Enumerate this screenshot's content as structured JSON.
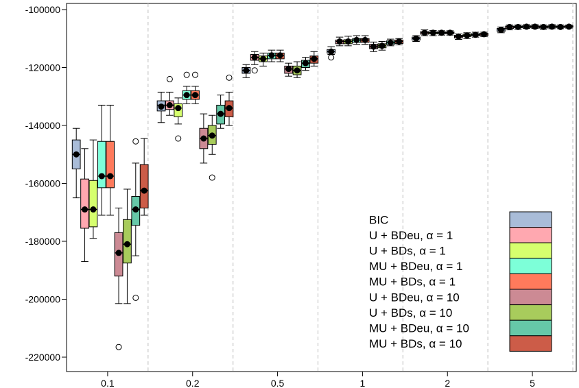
{
  "chart_data": {
    "type": "boxplot",
    "title": "",
    "xlabel": "",
    "ylabel": "",
    "ylim": [
      -225000,
      -97000
    ],
    "y_ticks": [
      "-100000",
      "-120000",
      "-140000",
      "-160000",
      "-180000",
      "-200000",
      "-220000"
    ],
    "y_tick_values": [
      -100000,
      -120000,
      -140000,
      -160000,
      -180000,
      -200000,
      -220000
    ],
    "categories": [
      "0.1",
      "0.2",
      "0.5",
      "1",
      "2",
      "5"
    ],
    "grid": "dashed vertical separators between categories",
    "legend_position": "bottom-right",
    "series": [
      {
        "name": "BIC",
        "color": "#a9bcd8",
        "boxes": [
          {
            "min": -165000,
            "q1": -155000,
            "median": -150000,
            "q3": -145000,
            "max": -141000,
            "mean": -150000,
            "outliers": []
          },
          {
            "min": -139000,
            "q1": -135000,
            "median": -133000,
            "q3": -131500,
            "max": -128500,
            "mean": -133500,
            "outliers": []
          },
          {
            "min": -123500,
            "q1": -122000,
            "median": -121000,
            "q3": -120000,
            "max": -119000,
            "mean": -121000,
            "outliers": []
          },
          {
            "min": -115500,
            "q1": -115000,
            "median": -114500,
            "q3": -113800,
            "max": -112800,
            "mean": -114500,
            "outliers": [
              -116500
            ]
          },
          {
            "min": -111000,
            "q1": -110500,
            "median": -110000,
            "q3": -109500,
            "max": -109000,
            "mean": -110000,
            "outliers": []
          },
          {
            "min": -108000,
            "q1": -107500,
            "median": -107000,
            "q3": -106500,
            "max": -106000,
            "mean": -107000,
            "outliers": []
          }
        ]
      },
      {
        "name": "U + BDeu, α = 1",
        "color": "#ffa8b0",
        "boxes": [
          {
            "min": -187000,
            "q1": -175500,
            "median": -169000,
            "q3": -158500,
            "max": -148000,
            "mean": -169000,
            "outliers": []
          },
          {
            "min": -136500,
            "q1": -134500,
            "median": -133000,
            "q3": -131500,
            "max": -128500,
            "mean": -133000,
            "outliers": [
              -124000
            ]
          },
          {
            "min": -119000,
            "q1": -117500,
            "median": -116500,
            "q3": -115500,
            "max": -114500,
            "mean": -116500,
            "outliers": [
              -121000
            ]
          },
          {
            "min": -112500,
            "q1": -111800,
            "median": -111000,
            "q3": -110500,
            "max": -109500,
            "mean": -111000,
            "outliers": []
          },
          {
            "min": -109000,
            "q1": -108500,
            "median": -108000,
            "q3": -107600,
            "max": -107000,
            "mean": -108000,
            "outliers": []
          },
          {
            "min": -107000,
            "q1": -106500,
            "median": -106000,
            "q3": -105700,
            "max": -105300,
            "mean": -106000,
            "outliers": []
          }
        ]
      },
      {
        "name": "U + BDs, α = 1",
        "color": "#d6ff6e",
        "boxes": [
          {
            "min": -179000,
            "q1": -175000,
            "median": -169000,
            "q3": -159000,
            "max": -145000,
            "mean": -169000,
            "outliers": []
          },
          {
            "min": -139500,
            "q1": -137000,
            "median": -134000,
            "q3": -132500,
            "max": -130500,
            "mean": -134000,
            "outliers": [
              -144500
            ]
          },
          {
            "min": -119500,
            "q1": -118000,
            "median": -117000,
            "q3": -116000,
            "max": -115000,
            "mean": -117000,
            "outliers": []
          },
          {
            "min": -112500,
            "q1": -111800,
            "median": -111000,
            "q3": -110400,
            "max": -109200,
            "mean": -111000,
            "outliers": []
          },
          {
            "min": -109000,
            "q1": -108400,
            "median": -108000,
            "q3": -107700,
            "max": -107200,
            "mean": -108000,
            "outliers": []
          },
          {
            "min": -106800,
            "q1": -106300,
            "median": -106000,
            "q3": -105700,
            "max": -105300,
            "mean": -106000,
            "outliers": []
          }
        ]
      },
      {
        "name": "MU + BDeu, α = 1",
        "color": "#7dffd8",
        "boxes": [
          {
            "min": -171000,
            "q1": -161500,
            "median": -157500,
            "q3": -145500,
            "max": -133000,
            "mean": -157500,
            "outliers": []
          },
          {
            "min": -132500,
            "q1": -131000,
            "median": -129500,
            "q3": -128000,
            "max": -126500,
            "mean": -129500,
            "outliers": [
              -122500
            ]
          },
          {
            "min": -118000,
            "q1": -117000,
            "median": -115800,
            "q3": -115000,
            "max": -114000,
            "mean": -115800,
            "outliers": []
          },
          {
            "min": -112000,
            "q1": -111300,
            "median": -110500,
            "q3": -110000,
            "max": -109000,
            "mean": -110500,
            "outliers": []
          },
          {
            "min": -108800,
            "q1": -108300,
            "median": -108000,
            "q3": -107700,
            "max": -107300,
            "mean": -108000,
            "outliers": []
          },
          {
            "min": -106500,
            "q1": -106200,
            "median": -105900,
            "q3": -105600,
            "max": -105200,
            "mean": -105900,
            "outliers": []
          }
        ]
      },
      {
        "name": "MU + BDs, α = 1",
        "color": "#ff7a5c",
        "boxes": [
          {
            "min": -171000,
            "q1": -161500,
            "median": -157500,
            "q3": -145500,
            "max": -133000,
            "mean": -157500,
            "outliers": []
          },
          {
            "min": -132500,
            "q1": -131000,
            "median": -129500,
            "q3": -128000,
            "max": -126500,
            "mean": -129500,
            "outliers": [
              -122500
            ]
          },
          {
            "min": -118000,
            "q1": -117000,
            "median": -115800,
            "q3": -115000,
            "max": -114000,
            "mean": -115800,
            "outliers": []
          },
          {
            "min": -112000,
            "q1": -111300,
            "median": -110500,
            "q3": -110000,
            "max": -109000,
            "mean": -110500,
            "outliers": []
          },
          {
            "min": -108800,
            "q1": -108300,
            "median": -108000,
            "q3": -107700,
            "max": -107300,
            "mean": -108000,
            "outliers": []
          },
          {
            "min": -106500,
            "q1": -106200,
            "median": -105900,
            "q3": -105600,
            "max": -105200,
            "mean": -105900,
            "outliers": []
          }
        ]
      },
      {
        "name": "U + BDeu, α = 10",
        "color": "#cc8a94",
        "boxes": [
          {
            "min": -201500,
            "q1": -192000,
            "median": -184000,
            "q3": -177000,
            "max": -168500,
            "mean": -184000,
            "outliers": [
              -216500
            ]
          },
          {
            "min": -153000,
            "q1": -148000,
            "median": -144500,
            "q3": -141000,
            "max": -136000,
            "mean": -144500,
            "outliers": []
          },
          {
            "min": -123000,
            "q1": -122000,
            "median": -120500,
            "q3": -119500,
            "max": -118500,
            "mean": -120500,
            "outliers": []
          },
          {
            "min": -114500,
            "q1": -113500,
            "median": -112800,
            "q3": -112000,
            "max": -111200,
            "mean": -112800,
            "outliers": []
          },
          {
            "min": -110300,
            "q1": -109800,
            "median": -109300,
            "q3": -108900,
            "max": -108400,
            "mean": -109300,
            "outliers": []
          },
          {
            "min": -106800,
            "q1": -106400,
            "median": -106000,
            "q3": -105700,
            "max": -105300,
            "mean": -106000,
            "outliers": []
          }
        ]
      },
      {
        "name": "U + BDs, α = 10",
        "color": "#a8cc5c",
        "boxes": [
          {
            "min": -201500,
            "q1": -187500,
            "median": -181000,
            "q3": -172500,
            "max": -162000,
            "mean": -181000,
            "outliers": []
          },
          {
            "min": -150000,
            "q1": -146500,
            "median": -143500,
            "q3": -140000,
            "max": -136500,
            "mean": -143500,
            "outliers": [
              -158000
            ]
          },
          {
            "min": -123500,
            "q1": -122500,
            "median": -121000,
            "q3": -119500,
            "max": -118000,
            "mean": -121000,
            "outliers": []
          },
          {
            "min": -114000,
            "q1": -113200,
            "median": -112500,
            "q3": -111800,
            "max": -111000,
            "mean": -112500,
            "outliers": []
          },
          {
            "min": -110000,
            "q1": -109300,
            "median": -108900,
            "q3": -108500,
            "max": -108000,
            "mean": -108900,
            "outliers": []
          },
          {
            "min": -106600,
            "q1": -106200,
            "median": -105900,
            "q3": -105600,
            "max": -105200,
            "mean": -105900,
            "outliers": []
          }
        ]
      },
      {
        "name": "MU + BDeu, α = 10",
        "color": "#66c8a8",
        "boxes": [
          {
            "min": -185000,
            "q1": -174500,
            "median": -169000,
            "q3": -164500,
            "max": -153000,
            "mean": -169000,
            "outliers": [
              -145500,
              -199500
            ]
          },
          {
            "min": -141000,
            "q1": -139500,
            "median": -136000,
            "q3": -133000,
            "max": -129500,
            "mean": -136000,
            "outliers": []
          },
          {
            "min": -121000,
            "q1": -120000,
            "median": -118500,
            "q3": -117500,
            "max": -116500,
            "mean": -118500,
            "outliers": []
          },
          {
            "min": -112500,
            "q1": -112000,
            "median": -111400,
            "q3": -110800,
            "max": -110200,
            "mean": -111400,
            "outliers": []
          },
          {
            "min": -109500,
            "q1": -109000,
            "median": -108700,
            "q3": -108300,
            "max": -107800,
            "mean": -108700,
            "outliers": []
          },
          {
            "min": -106600,
            "q1": -106200,
            "median": -106000,
            "q3": -105700,
            "max": -105300,
            "mean": -106000,
            "outliers": []
          }
        ]
      },
      {
        "name": "MU + BDs, α = 10",
        "color": "#cc5c48",
        "boxes": [
          {
            "min": -171000,
            "q1": -168500,
            "median": -162500,
            "q3": -153500,
            "max": -144500,
            "mean": -162500,
            "outliers": []
          },
          {
            "min": -140000,
            "q1": -137000,
            "median": -134000,
            "q3": -131500,
            "max": -128500,
            "mean": -134000,
            "outliers": [
              -123500
            ]
          },
          {
            "min": -119500,
            "q1": -118500,
            "median": -117000,
            "q3": -116000,
            "max": -114500,
            "mean": -117000,
            "outliers": []
          },
          {
            "min": -112200,
            "q1": -111700,
            "median": -111000,
            "q3": -110500,
            "max": -110000,
            "mean": -111000,
            "outliers": []
          },
          {
            "min": -109300,
            "q1": -108900,
            "median": -108500,
            "q3": -108200,
            "max": -107800,
            "mean": -108500,
            "outliers": []
          },
          {
            "min": -106400,
            "q1": -106100,
            "median": -105900,
            "q3": -105600,
            "max": -105300,
            "mean": -105900,
            "outliers": []
          }
        ]
      }
    ]
  }
}
